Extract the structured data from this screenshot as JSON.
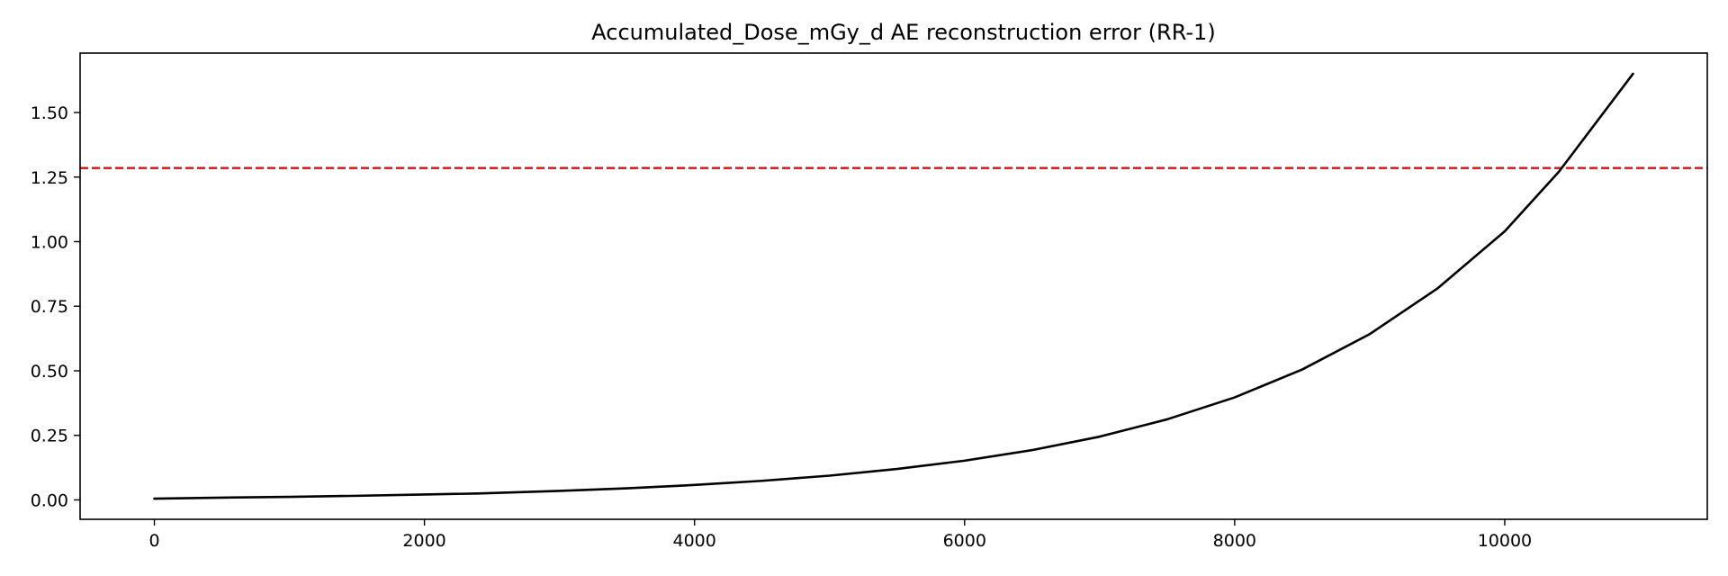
{
  "chart_data": {
    "type": "line",
    "title": "Accumulated_Dose_mGy_d AE reconstruction error (RR-1)",
    "xlabel": "",
    "ylabel": "",
    "xlim": [
      -550,
      11500
    ],
    "ylim": [
      -0.075,
      1.73
    ],
    "grid": false,
    "legend": "none",
    "x_ticks": [
      0,
      2000,
      4000,
      6000,
      8000,
      10000
    ],
    "x_tick_labels": [
      "0",
      "2000",
      "4000",
      "6000",
      "8000",
      "10000"
    ],
    "y_ticks": [
      0.0,
      0.25,
      0.5,
      0.75,
      1.0,
      1.25,
      1.5
    ],
    "y_tick_labels": [
      "0.00",
      "0.25",
      "0.50",
      "0.75",
      "1.00",
      "1.25",
      "1.50"
    ],
    "series": [
      {
        "color": "#000000",
        "x": [
          0,
          500,
          1000,
          1500,
          2000,
          2400,
          3000,
          3500,
          4000,
          4500,
          5000,
          5500,
          6000,
          6500,
          7000,
          7500,
          8000,
          8500,
          9000,
          9500,
          10000,
          10400,
          10950
        ],
        "y": [
          0.005,
          0.009,
          0.012,
          0.016,
          0.021,
          0.025,
          0.035,
          0.045,
          0.058,
          0.074,
          0.094,
          0.12,
          0.152,
          0.193,
          0.245,
          0.312,
          0.397,
          0.505,
          0.642,
          0.818,
          1.04,
          1.27,
          1.65
        ]
      }
    ],
    "threshold": {
      "y": 1.285,
      "color": "#ff0000",
      "style": "dashed"
    }
  }
}
